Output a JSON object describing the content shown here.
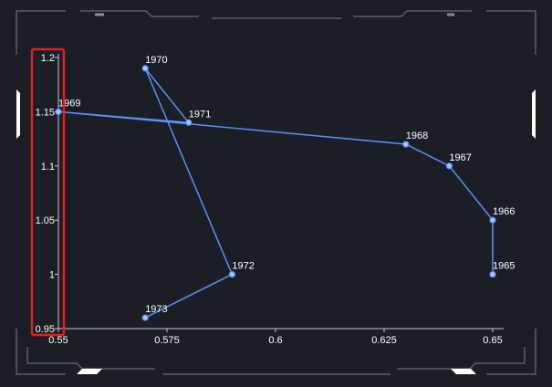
{
  "chart_data": {
    "type": "scatter",
    "connected": true,
    "title": "",
    "xlabel": "",
    "ylabel": "",
    "xlim": [
      0.55,
      0.65
    ],
    "ylim": [
      0.95,
      1.2
    ],
    "x_ticks": [
      "0.55",
      "0.575",
      "0.6",
      "0.625",
      "0.65"
    ],
    "y_ticks": [
      "0.95",
      "1",
      "1.05",
      "1.1",
      "1.15",
      "1.2"
    ],
    "points": [
      {
        "label": "1965",
        "x": 0.65,
        "y": 1.0
      },
      {
        "label": "1966",
        "x": 0.65,
        "y": 1.05
      },
      {
        "label": "1967",
        "x": 0.64,
        "y": 1.1
      },
      {
        "label": "1968",
        "x": 0.63,
        "y": 1.12
      },
      {
        "label": "1969",
        "x": 0.55,
        "y": 1.15
      },
      {
        "label": "1971",
        "x": 0.58,
        "y": 1.14
      },
      {
        "label": "1970",
        "x": 0.57,
        "y": 1.19
      },
      {
        "label": "1972",
        "x": 0.59,
        "y": 1.0
      },
      {
        "label": "1973",
        "x": 0.57,
        "y": 0.96
      }
    ],
    "grid": false,
    "colors": {
      "background": "#1b1e25",
      "line": "#5b8ff9",
      "point_fill": "#a9c4ff",
      "text": "#ffffff",
      "axis": "#c8ccd4",
      "frame": "#5a5f69",
      "highlight": "#e02020"
    },
    "annotations": [
      {
        "type": "highlight-box",
        "target": "y-axis"
      }
    ]
  }
}
